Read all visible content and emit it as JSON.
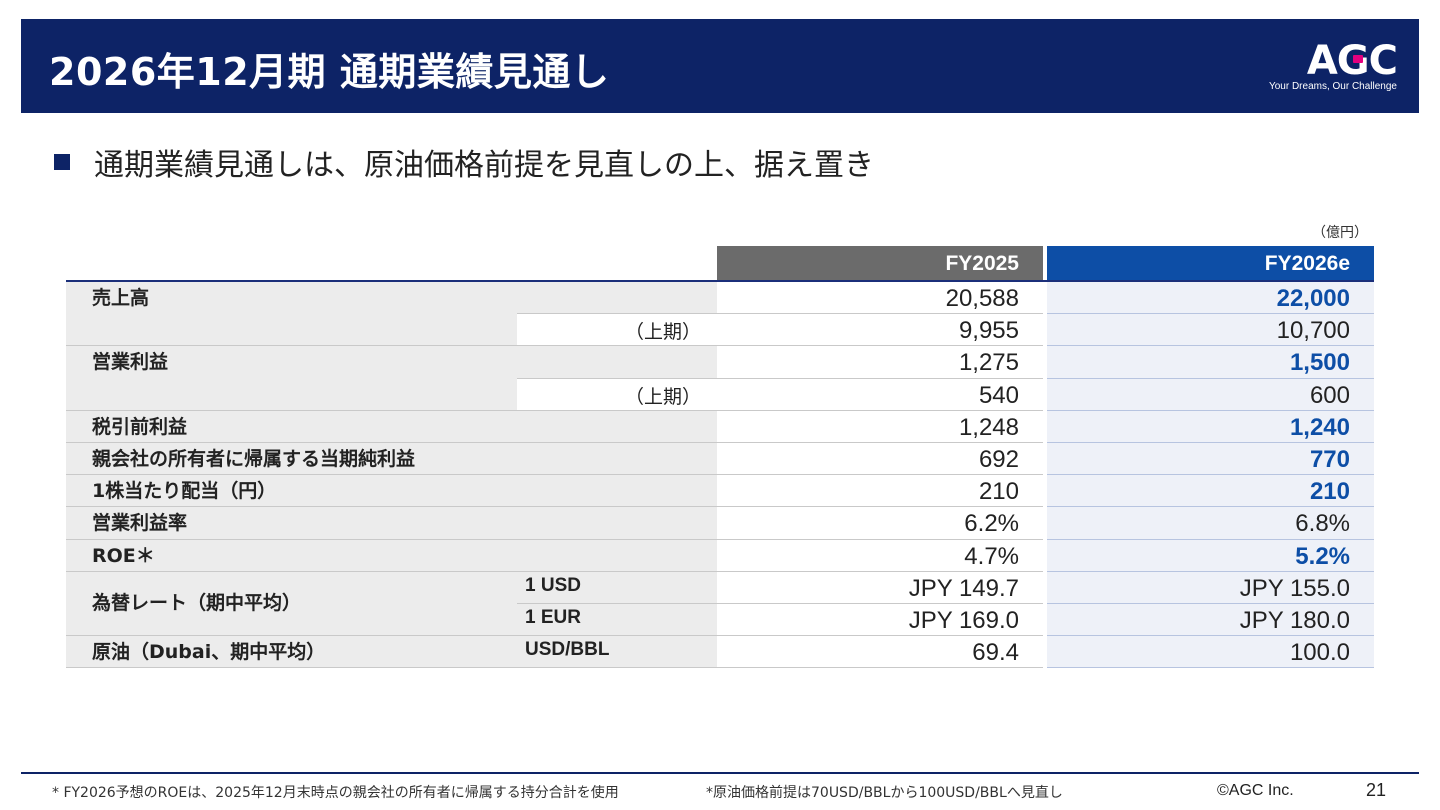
{
  "header": {
    "title": "2026年12月期 通期業績見通し",
    "logo": {
      "mark": "AGC",
      "tagline": "Your Dreams, Our Challenge"
    }
  },
  "bullet": "通期業績見通しは、原油価格前提を見直しの上、据え置き",
  "unit": "（億円）",
  "table": {
    "columns": [
      "FY2025",
      "FY2026e"
    ],
    "rows": [
      {
        "label": "売上高",
        "sub": "",
        "unit": "",
        "fy2025": "20,588",
        "fy2026e": "22,000",
        "bold26": true,
        "big": true
      },
      {
        "label": "",
        "sub": "（上期）",
        "unit": "",
        "fy2025": "9,955",
        "fy2026e": "10,700",
        "bold26": false,
        "big": false
      },
      {
        "label": "営業利益",
        "sub": "",
        "unit": "",
        "fy2025": "1,275",
        "fy2026e": "1,500",
        "bold26": true,
        "big": true
      },
      {
        "label": "",
        "sub": "（上期）",
        "unit": "",
        "fy2025": "540",
        "fy2026e": "600",
        "bold26": false,
        "big": false
      },
      {
        "label": "税引前利益",
        "sub": "",
        "unit": "",
        "fy2025": "1,248",
        "fy2026e": "1,240",
        "bold26": true,
        "big": false
      },
      {
        "label": "親会社の所有者に帰属する当期純利益",
        "sub": "",
        "unit": "",
        "fy2025": "692",
        "fy2026e": "770",
        "bold26": true,
        "big": false
      },
      {
        "label": "1株当たり配当（円）",
        "sub": "",
        "unit": "",
        "fy2025": "210",
        "fy2026e": "210",
        "bold26": true,
        "big": false
      },
      {
        "label": "営業利益率",
        "sub": "",
        "unit": "",
        "fy2025": "6.2%",
        "fy2026e": "6.8%",
        "bold26": false,
        "big": false
      },
      {
        "label": "ROE＊",
        "sub": "",
        "unit": "",
        "fy2025": "4.7%",
        "fy2026e": "5.2%",
        "bold26": true,
        "big": false
      },
      {
        "label": "為替レート（期中平均）",
        "sub": "",
        "unit": "1 USD",
        "fy2025": "JPY  149.7",
        "fy2026e": "JPY  155.0",
        "bold26": false,
        "big": false
      },
      {
        "label": "",
        "sub": "",
        "unit": "1 EUR",
        "fy2025": "JPY  169.0",
        "fy2026e": "JPY  180.0",
        "bold26": false,
        "big": false
      },
      {
        "label": "原油（Dubai、期中平均）",
        "sub": "",
        "unit": "USD/BBL",
        "fy2025": "69.4",
        "fy2026e": "100.0",
        "bold26": false,
        "big": false
      }
    ]
  },
  "footer": {
    "note1": "* FY2026予想のROEは、2025年12月末時点の親会社の所有者に帰属する持分合計を使用",
    "note2": "*原油価格前提は70USD/BBLから100USD/BBLへ見直し",
    "copyright": "©AGC Inc.",
    "page": "21"
  }
}
